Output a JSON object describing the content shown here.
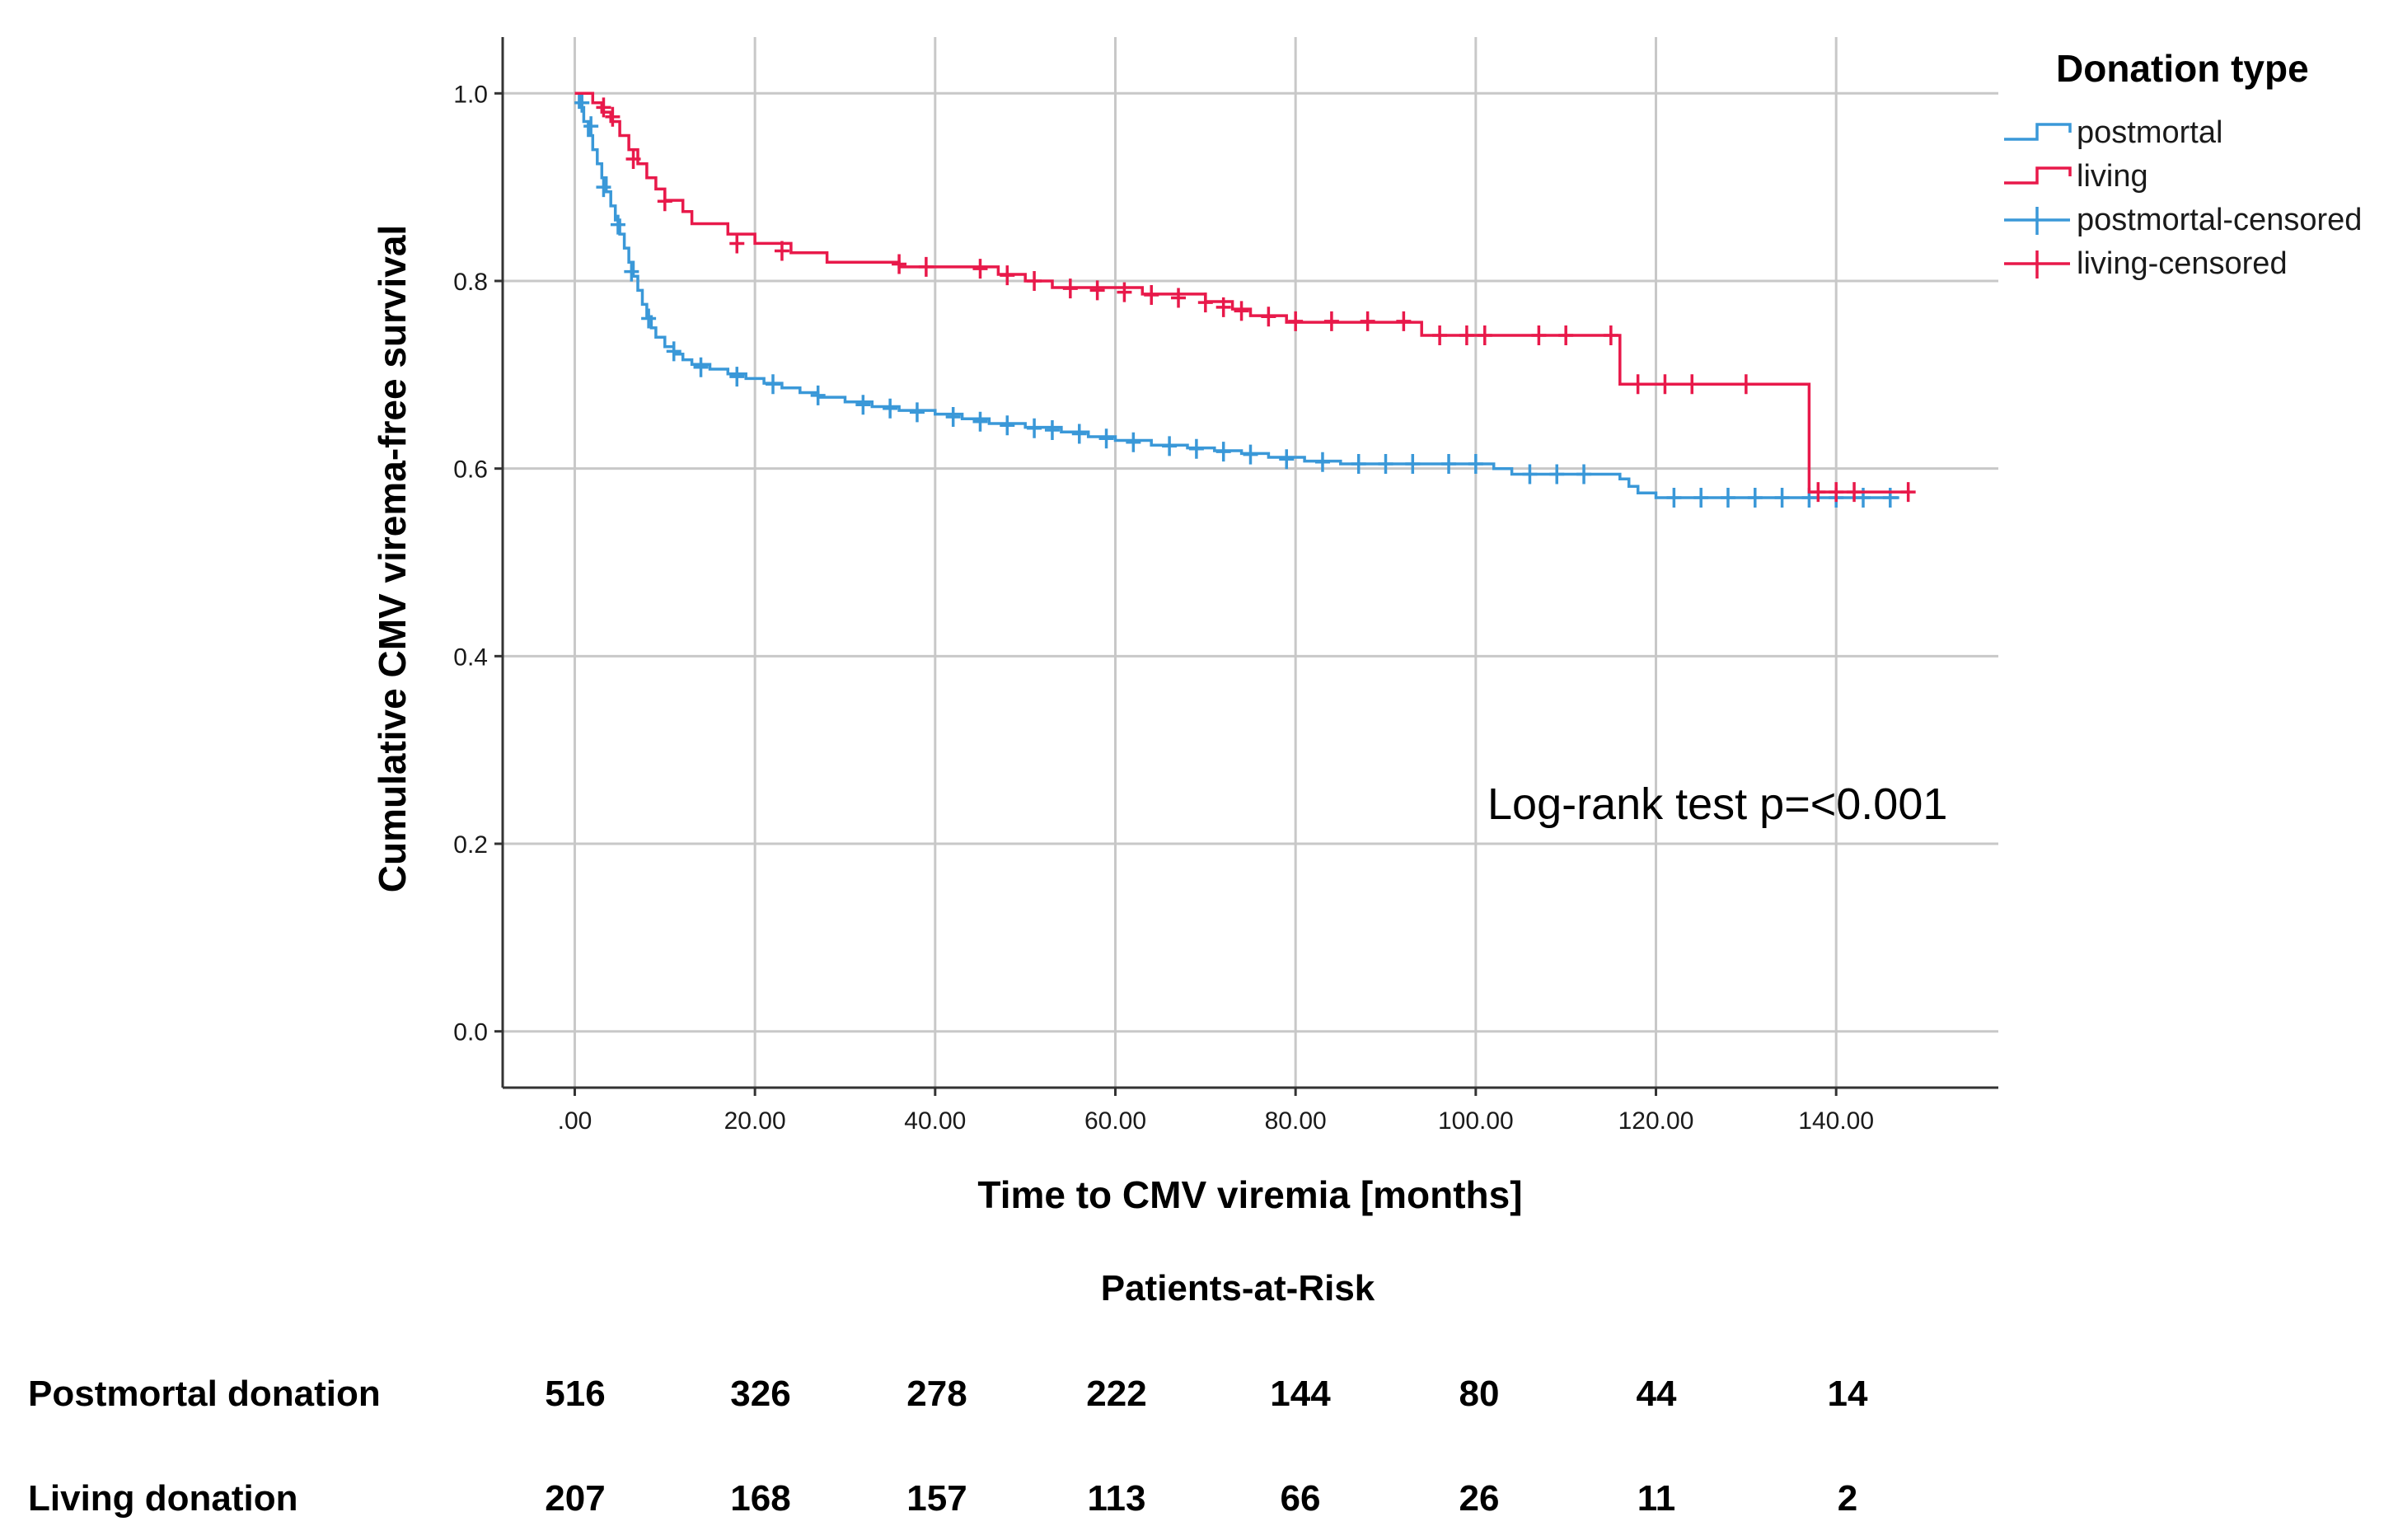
{
  "chart_data": {
    "type": "line",
    "subtype": "kaplan-meier",
    "title": "",
    "xlabel": "Time to CMV viremia [months]",
    "ylabel": "Cumulative CMV virema-free survival",
    "xlim": [
      -8,
      158
    ],
    "ylim": [
      -0.06,
      1.06
    ],
    "x_ticks": [
      0,
      20,
      40,
      60,
      80,
      100,
      120,
      140
    ],
    "x_tick_labels": [
      ".00",
      "20.00",
      "40.00",
      "60.00",
      "80.00",
      "100.00",
      "120.00",
      "140.00"
    ],
    "y_ticks": [
      0.0,
      0.2,
      0.4,
      0.6,
      0.8,
      1.0
    ],
    "y_tick_labels": [
      "0.0",
      "0.2",
      "0.4",
      "0.6",
      "0.8",
      "1.0"
    ],
    "grid": true,
    "legend": {
      "title": "Donation type",
      "position": "top-right",
      "entries": [
        {
          "label": "postmortal",
          "kind": "step",
          "color": "#3a98d8"
        },
        {
          "label": "living",
          "kind": "step",
          "color": "#e8194a"
        },
        {
          "label": "postmortal-censored",
          "kind": "cross",
          "color": "#3a98d8"
        },
        {
          "label": "living-censored",
          "kind": "cross",
          "color": "#e8194a"
        }
      ]
    },
    "annotation": "Log-rank test p=<0.001",
    "series": [
      {
        "name": "postmortal",
        "color": "#3a98d8",
        "steps": [
          [
            0,
            1.0
          ],
          [
            0.5,
            0.985
          ],
          [
            1,
            0.97
          ],
          [
            1.5,
            0.955
          ],
          [
            2,
            0.94
          ],
          [
            2.5,
            0.925
          ],
          [
            3,
            0.91
          ],
          [
            3.5,
            0.895
          ],
          [
            4,
            0.88
          ],
          [
            4.5,
            0.865
          ],
          [
            5,
            0.85
          ],
          [
            5.5,
            0.835
          ],
          [
            6,
            0.82
          ],
          [
            6.5,
            0.805
          ],
          [
            7,
            0.79
          ],
          [
            7.5,
            0.775
          ],
          [
            8,
            0.762
          ],
          [
            8.5,
            0.75
          ],
          [
            9,
            0.74
          ],
          [
            10,
            0.73
          ],
          [
            11,
            0.722
          ],
          [
            12,
            0.716
          ],
          [
            13,
            0.711
          ],
          [
            15,
            0.706
          ],
          [
            17,
            0.701
          ],
          [
            19,
            0.696
          ],
          [
            21,
            0.691
          ],
          [
            23,
            0.686
          ],
          [
            25,
            0.681
          ],
          [
            27,
            0.676
          ],
          [
            30,
            0.671
          ],
          [
            33,
            0.666
          ],
          [
            36,
            0.662
          ],
          [
            40,
            0.658
          ],
          [
            43,
            0.653
          ],
          [
            46,
            0.648
          ],
          [
            50,
            0.644
          ],
          [
            54,
            0.639
          ],
          [
            57,
            0.634
          ],
          [
            60,
            0.63
          ],
          [
            64,
            0.625
          ],
          [
            68,
            0.622
          ],
          [
            71,
            0.619
          ],
          [
            74,
            0.616
          ],
          [
            77,
            0.612
          ],
          [
            81,
            0.608
          ],
          [
            85,
            0.605
          ],
          [
            100,
            0.605
          ],
          [
            102,
            0.6
          ],
          [
            104,
            0.594
          ],
          [
            115,
            0.594
          ],
          [
            116,
            0.589
          ],
          [
            117,
            0.581
          ],
          [
            118,
            0.574
          ],
          [
            120,
            0.569
          ],
          [
            147,
            0.569
          ]
        ],
        "censored": [
          [
            0.8,
            0.99
          ],
          [
            1.8,
            0.965
          ],
          [
            3.2,
            0.9
          ],
          [
            4.8,
            0.86
          ],
          [
            6.3,
            0.81
          ],
          [
            8.2,
            0.76
          ],
          [
            11,
            0.725
          ],
          [
            14,
            0.708
          ],
          [
            18,
            0.698
          ],
          [
            22,
            0.69
          ],
          [
            27,
            0.678
          ],
          [
            32,
            0.668
          ],
          [
            35,
            0.664
          ],
          [
            38,
            0.66
          ],
          [
            42,
            0.655
          ],
          [
            45,
            0.65
          ],
          [
            48,
            0.646
          ],
          [
            51,
            0.643
          ],
          [
            53,
            0.641
          ],
          [
            56,
            0.637
          ],
          [
            59,
            0.632
          ],
          [
            62,
            0.628
          ],
          [
            66,
            0.624
          ],
          [
            69,
            0.621
          ],
          [
            72,
            0.618
          ],
          [
            75,
            0.615
          ],
          [
            79,
            0.61
          ],
          [
            83,
            0.607
          ],
          [
            87,
            0.605
          ],
          [
            90,
            0.605
          ],
          [
            93,
            0.605
          ],
          [
            97,
            0.605
          ],
          [
            100,
            0.605
          ],
          [
            106,
            0.594
          ],
          [
            109,
            0.594
          ],
          [
            112,
            0.594
          ],
          [
            122,
            0.569
          ],
          [
            125,
            0.569
          ],
          [
            128,
            0.569
          ],
          [
            131,
            0.569
          ],
          [
            134,
            0.569
          ],
          [
            137,
            0.569
          ],
          [
            140,
            0.569
          ],
          [
            143,
            0.569
          ],
          [
            146,
            0.569
          ]
        ]
      },
      {
        "name": "living",
        "color": "#e8194a",
        "steps": [
          [
            0,
            1.0
          ],
          [
            2,
            0.99
          ],
          [
            3,
            0.98
          ],
          [
            4,
            0.97
          ],
          [
            5,
            0.955
          ],
          [
            6,
            0.94
          ],
          [
            7,
            0.925
          ],
          [
            8,
            0.91
          ],
          [
            9,
            0.898
          ],
          [
            10,
            0.886
          ],
          [
            12,
            0.874
          ],
          [
            13,
            0.861
          ],
          [
            17,
            0.85
          ],
          [
            20,
            0.84
          ],
          [
            24,
            0.83
          ],
          [
            28,
            0.82
          ],
          [
            36,
            0.815
          ],
          [
            47,
            0.807
          ],
          [
            50,
            0.8
          ],
          [
            53,
            0.793
          ],
          [
            63,
            0.786
          ],
          [
            70,
            0.778
          ],
          [
            73,
            0.77
          ],
          [
            75,
            0.763
          ],
          [
            79,
            0.756
          ],
          [
            94,
            0.742
          ],
          [
            102,
            0.742
          ],
          [
            116,
            0.69
          ],
          [
            136,
            0.69
          ],
          [
            137,
            0.575
          ],
          [
            148,
            0.575
          ]
        ],
        "censored": [
          [
            3.2,
            0.985
          ],
          [
            4.2,
            0.975
          ],
          [
            6.5,
            0.93
          ],
          [
            10,
            0.885
          ],
          [
            18,
            0.84
          ],
          [
            23,
            0.832
          ],
          [
            36,
            0.818
          ],
          [
            39,
            0.815
          ],
          [
            45,
            0.813
          ],
          [
            48,
            0.806
          ],
          [
            51,
            0.8
          ],
          [
            55,
            0.792
          ],
          [
            58,
            0.79
          ],
          [
            61,
            0.788
          ],
          [
            64,
            0.785
          ],
          [
            67,
            0.782
          ],
          [
            70,
            0.777
          ],
          [
            72,
            0.772
          ],
          [
            74,
            0.768
          ],
          [
            77,
            0.762
          ],
          [
            80,
            0.757
          ],
          [
            84,
            0.757
          ],
          [
            88,
            0.757
          ],
          [
            92,
            0.757
          ],
          [
            96,
            0.742
          ],
          [
            99,
            0.742
          ],
          [
            101,
            0.742
          ],
          [
            107,
            0.742
          ],
          [
            110,
            0.742
          ],
          [
            115,
            0.742
          ],
          [
            118,
            0.69
          ],
          [
            121,
            0.69
          ],
          [
            124,
            0.69
          ],
          [
            130,
            0.69
          ],
          [
            138,
            0.575
          ],
          [
            140,
            0.575
          ],
          [
            142,
            0.575
          ],
          [
            148,
            0.575
          ]
        ]
      }
    ],
    "patients_at_risk": {
      "title": "Patients-at-Risk",
      "rows": [
        {
          "label": "Postmortal  donation",
          "values": [
            "516",
            "326",
            "278",
            "222",
            "144",
            "80",
            "44",
            "14"
          ]
        },
        {
          "label": "Living  donation",
          "values": [
            "207",
            "168",
            "157",
            "113",
            "66",
            "26",
            "11",
            "2"
          ]
        }
      ]
    }
  }
}
